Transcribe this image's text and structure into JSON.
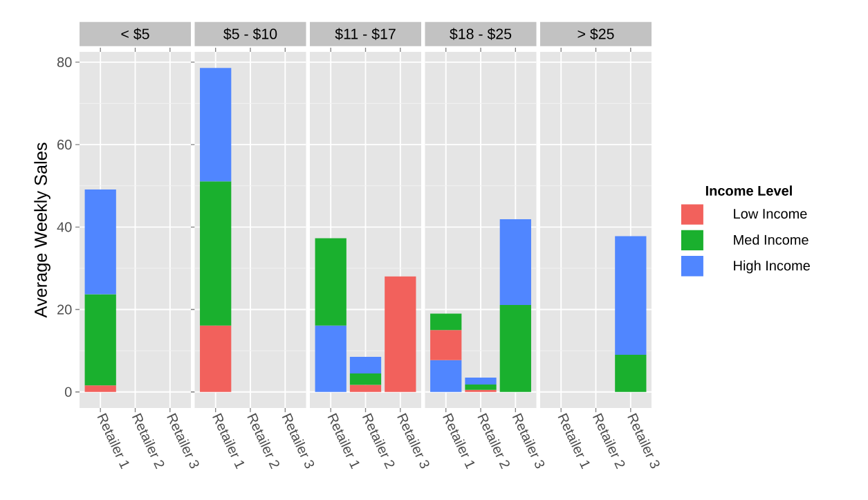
{
  "chart_data": [
    {
      "type": "bar",
      "stacked": true,
      "title": "< $5",
      "ylabel": "Average Weekly Sales",
      "categories": [
        "Retailer 1",
        "Retailer 2",
        "Retailer 3"
      ],
      "ylim": [
        -3.9,
        82.5
      ],
      "yticks": [
        0,
        20,
        40,
        60,
        80
      ],
      "grid": true,
      "series": [
        {
          "color": "#f2615c",
          "values": [
            1.6,
            null,
            null
          ]
        },
        {
          "color": "#1ab02e",
          "values": [
            22.1,
            null,
            null
          ]
        },
        {
          "color": "#5086ff",
          "values": [
            25.4,
            null,
            null
          ]
        }
      ]
    },
    {
      "type": "bar",
      "stacked": true,
      "title": "$5 - $10",
      "categories": [
        "Retailer 1",
        "Retailer 2",
        "Retailer 3"
      ],
      "ylim": [
        -3.9,
        82.5
      ],
      "yticks": [
        0,
        20,
        40,
        60,
        80
      ],
      "grid": true,
      "tick_labels": "x",
      "series": [
        {
          "color": "#f2615c",
          "values": [
            16.1,
            null,
            null
          ]
        },
        {
          "color": "#1ab02e",
          "values": [
            35.0,
            null,
            null
          ]
        },
        {
          "color": "#5086ff",
          "values": [
            27.5,
            null,
            null
          ]
        }
      ]
    },
    {
      "type": "bar",
      "stacked": true,
      "title": "$11 - $17",
      "categories": [
        "Retailer 1",
        "Retailer 2",
        "Retailer 3"
      ],
      "ylim": [
        -3.9,
        82.5
      ],
      "yticks": [
        0,
        20,
        40,
        60,
        80
      ],
      "grid": true,
      "tick_labels": "x",
      "series": [
        {
          "color": "#5086ff",
          "values": [
            16.1,
            null,
            null
          ]
        },
        {
          "color": "#f2615c",
          "values": [
            null,
            1.7,
            28.0
          ]
        },
        {
          "color": "#1ab02e",
          "values": [
            21.2,
            2.8,
            null
          ]
        },
        {
          "color": "#5086ff",
          "values": [
            null,
            4.0,
            null
          ]
        }
      ]
    },
    {
      "type": "bar",
      "stacked": true,
      "title": "$18 - $25",
      "categories": [
        "Retailer 1",
        "Retailer 2",
        "Retailer 3"
      ],
      "ylim": [
        -3.9,
        82.5
      ],
      "yticks": [
        0,
        20,
        40,
        60,
        80
      ],
      "grid": true,
      "tick_labels": "x",
      "series": [
        {
          "color": "#5086ff",
          "values": [
            7.7,
            null,
            null
          ]
        },
        {
          "color": "#f2615c",
          "values": [
            7.3,
            0.5,
            null
          ]
        },
        {
          "color": "#1ab02e",
          "values": [
            4.0,
            1.3,
            21.1
          ]
        },
        {
          "color": "#5086ff",
          "values": [
            null,
            1.7,
            20.8
          ]
        }
      ]
    },
    {
      "type": "bar",
      "stacked": true,
      "title": "> $25",
      "categories": [
        "Retailer 1",
        "Retailer 2",
        "Retailer 3"
      ],
      "ylim": [
        -3.9,
        82.5
      ],
      "yticks": [
        0,
        20,
        40,
        60,
        80
      ],
      "grid": true,
      "tick_labels": "x",
      "legend": "right",
      "legend_title": "Income Level",
      "series": [
        {
          "name": "Low Income",
          "color": "#f2615c",
          "values": [
            null,
            null,
            null
          ]
        },
        {
          "name": "Med Income",
          "color": "#1ab02e",
          "values": [
            null,
            null,
            9.0
          ]
        },
        {
          "name": "High Income",
          "color": "#5086ff",
          "values": [
            null,
            null,
            28.8
          ]
        }
      ]
    }
  ]
}
